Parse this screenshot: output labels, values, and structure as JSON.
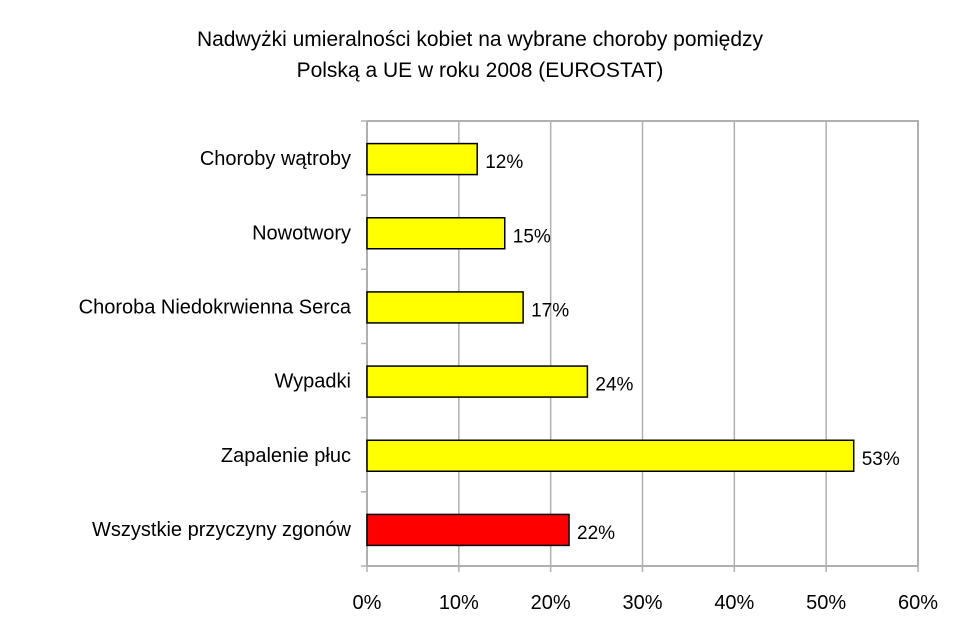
{
  "chart_data": {
    "type": "bar",
    "orientation": "horizontal",
    "title_lines": [
      "Nadwyżki umieralności kobiet na wybrane choroby pomiędzy",
      "Polską a UE w roku 2008 (EUROSTAT)"
    ],
    "categories": [
      "Choroby wątroby",
      "Nowotwory",
      "Choroba Niedokrwienna Serca",
      "Wypadki",
      "Zapalenie płuc",
      "Wszystkie przyczyny zgonów"
    ],
    "values": [
      12,
      15,
      17,
      24,
      53,
      22
    ],
    "value_labels": [
      "12%",
      "15%",
      "17%",
      "24%",
      "53%",
      "22%"
    ],
    "bar_colors": [
      "#ffff00",
      "#ffff00",
      "#ffff00",
      "#ffff00",
      "#ffff00",
      "#ff0000"
    ],
    "xlim": [
      0,
      60
    ],
    "xticks": [
      0,
      10,
      20,
      30,
      40,
      50,
      60
    ],
    "xtick_labels": [
      "0%",
      "10%",
      "20%",
      "30%",
      "40%",
      "50%",
      "60%"
    ],
    "grid": "vertical",
    "legend": "none"
  }
}
